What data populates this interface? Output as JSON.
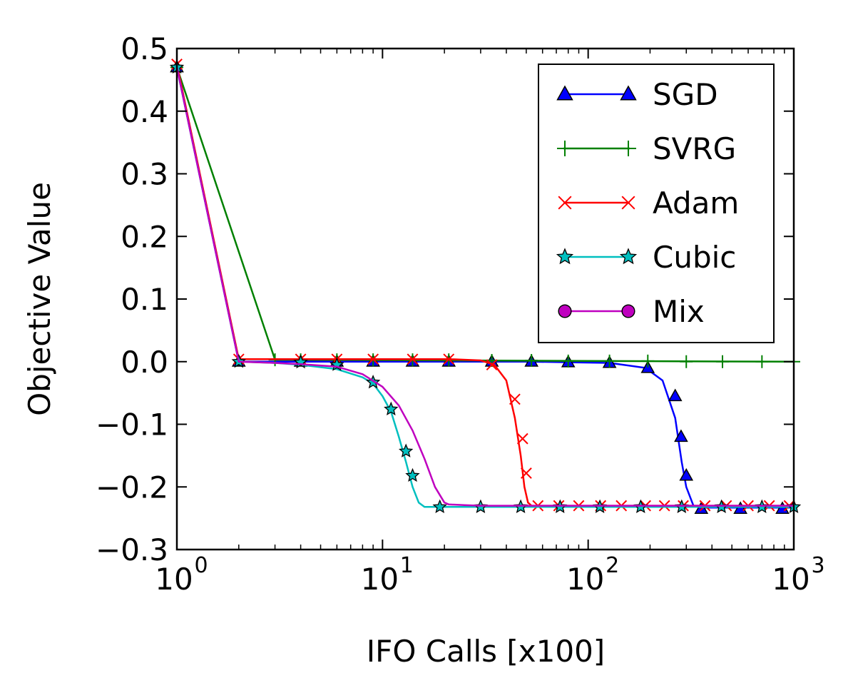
{
  "chart_data": {
    "type": "line",
    "title": "",
    "xlabel": "IFO Calls [x100]",
    "ylabel": "Objective Value",
    "xscale": "log",
    "xlim": [
      1,
      1000
    ],
    "ylim": [
      -0.3,
      0.5
    ],
    "grid": false,
    "legend_position": "top-right",
    "yticks": [
      {
        "value": 0.5,
        "label": "0.5"
      },
      {
        "value": 0.4,
        "label": "0.4"
      },
      {
        "value": 0.3,
        "label": "0.3"
      },
      {
        "value": 0.2,
        "label": "0.2"
      },
      {
        "value": 0.1,
        "label": "0.1"
      },
      {
        "value": 0.0,
        "label": "0.0"
      },
      {
        "value": -0.1,
        "label": "−0.1"
      },
      {
        "value": -0.2,
        "label": "−0.2"
      },
      {
        "value": -0.3,
        "label": "−0.3"
      }
    ],
    "xticks": [
      {
        "value": 1,
        "base": "10",
        "exp": "0"
      },
      {
        "value": 10,
        "base": "10",
        "exp": "1"
      },
      {
        "value": 100,
        "base": "10",
        "exp": "2"
      },
      {
        "value": 1000,
        "base": "10",
        "exp": "3"
      }
    ],
    "series": [
      {
        "name": "SGD",
        "color": "#0000ff",
        "marker": "triangle",
        "x": [
          1,
          2,
          4,
          6,
          9,
          14,
          21,
          34,
          53,
          80,
          127,
          190,
          230,
          265,
          285,
          300,
          325,
          360,
          400,
          600,
          1000
        ],
        "y": [
          0.47,
          0.0,
          0.0,
          0.0,
          0.0,
          0.0,
          0.0,
          0.0,
          0.0,
          -0.001,
          -0.002,
          -0.01,
          -0.03,
          -0.09,
          -0.16,
          -0.2,
          -0.23,
          -0.233,
          -0.233,
          -0.233,
          -0.233
        ],
        "mx": [
          1,
          2,
          4,
          6,
          9,
          14,
          21,
          34,
          53,
          80,
          127,
          195,
          265,
          283,
          300,
          355,
          550,
          880
        ],
        "my": [
          0.47,
          0.0,
          0.0,
          0.0,
          0.0,
          0.0,
          0.0,
          0.0,
          0.0,
          -0.001,
          -0.002,
          -0.01,
          -0.055,
          -0.12,
          -0.182,
          -0.235,
          -0.235,
          -0.235
        ]
      },
      {
        "name": "SVRG",
        "color": "#008000",
        "marker": "plus",
        "x": [
          1,
          3,
          1000
        ],
        "y": [
          0.47,
          0.003,
          0.0
        ],
        "mx": [
          1,
          3,
          4,
          6,
          9,
          14,
          21,
          34,
          53,
          80,
          127,
          195,
          300,
          450,
          700,
          1000
        ],
        "my": [
          0.47,
          0.003,
          0.003,
          0.003,
          0.003,
          0.003,
          0.003,
          0.002,
          0.002,
          0.001,
          0.001,
          0.001,
          0.0,
          0.0,
          0.0,
          0.0
        ]
      },
      {
        "name": "Adam",
        "color": "#ff0000",
        "marker": "x",
        "x": [
          1,
          2,
          4,
          6,
          9,
          14,
          21,
          30,
          35,
          40,
          44,
          47,
          49,
          51,
          53,
          57,
          1000
        ],
        "y": [
          0.475,
          0.004,
          0.004,
          0.004,
          0.004,
          0.004,
          0.004,
          0.002,
          -0.005,
          -0.03,
          -0.09,
          -0.15,
          -0.2,
          -0.225,
          -0.23,
          -0.23,
          -0.23
        ],
        "mx": [
          1,
          2,
          4,
          6,
          9,
          14,
          21,
          34,
          44,
          48,
          50,
          57,
          72,
          90,
          115,
          145,
          190,
          235,
          290,
          370,
          470,
          600,
          760,
          950
        ],
        "my": [
          0.475,
          0.004,
          0.004,
          0.004,
          0.004,
          0.004,
          0.004,
          -0.005,
          -0.06,
          -0.123,
          -0.178,
          -0.23,
          -0.23,
          -0.23,
          -0.23,
          -0.23,
          -0.23,
          -0.23,
          -0.23,
          -0.23,
          -0.23,
          -0.23,
          -0.23,
          -0.23
        ]
      },
      {
        "name": "Cubic",
        "color": "#00bfbf",
        "marker": "star",
        "x": [
          1,
          2,
          3,
          4,
          6,
          8,
          9,
          10,
          11,
          12,
          13,
          14,
          15,
          16,
          19,
          30,
          1000
        ],
        "y": [
          0.47,
          0.0,
          -0.002,
          -0.005,
          -0.012,
          -0.025,
          -0.035,
          -0.055,
          -0.08,
          -0.12,
          -0.16,
          -0.2,
          -0.225,
          -0.232,
          -0.232,
          -0.232,
          -0.232
        ],
        "mx": [
          1,
          2,
          4,
          6,
          9,
          11,
          13,
          14,
          19,
          30,
          47,
          73,
          114,
          180,
          285,
          445,
          700,
          1000
        ],
        "my": [
          0.47,
          0.0,
          -0.001,
          -0.005,
          -0.033,
          -0.076,
          -0.143,
          -0.182,
          -0.232,
          -0.232,
          -0.232,
          -0.232,
          -0.232,
          -0.232,
          -0.232,
          -0.232,
          -0.232,
          -0.232
        ]
      },
      {
        "name": "Mix",
        "color": "#bf00bf",
        "marker": "circle",
        "x": [
          1,
          2,
          3,
          4,
          6,
          8,
          10,
          12,
          14,
          16,
          18,
          20,
          21,
          25,
          30,
          50,
          100,
          1000
        ],
        "y": [
          0.47,
          0.0,
          -0.002,
          -0.004,
          -0.008,
          -0.02,
          -0.04,
          -0.07,
          -0.11,
          -0.155,
          -0.2,
          -0.225,
          -0.228,
          -0.229,
          -0.23,
          -0.23,
          -0.23,
          -0.23
        ],
        "mx": [],
        "my": []
      }
    ]
  }
}
